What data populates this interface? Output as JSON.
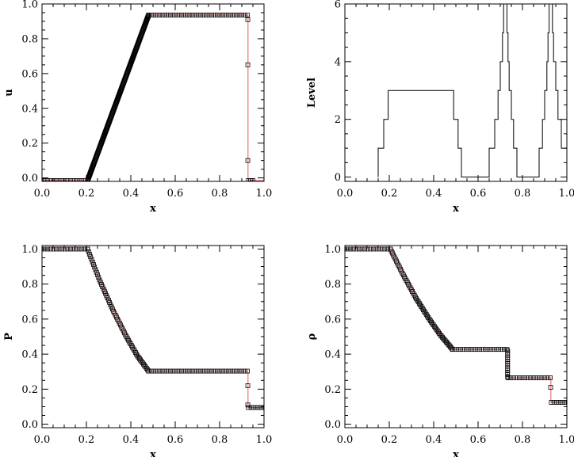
{
  "chart_data": [
    {
      "type": "scatter",
      "xlabel": "x",
      "ylabel": "u",
      "xlim": [
        0,
        1
      ],
      "ylim": [
        -0.02,
        1.0
      ],
      "xticks": [
        "0.0",
        "0.2",
        "0.4",
        "0.6",
        "0.8",
        "1.0"
      ],
      "yticks": [
        0,
        0.2,
        0.4,
        0.6,
        0.8,
        1.0
      ],
      "yticklabels": [
        "0.0",
        "0.2",
        "0.4",
        "0.6",
        "0.8",
        "1.0"
      ],
      "series": [
        {
          "style": "line",
          "color": "#e06060",
          "x": [
            0.0,
            0.205,
            0.48,
            0.928,
            0.928,
            1.0
          ],
          "y": [
            -0.015,
            -0.015,
            0.936,
            0.936,
            -0.015,
            -0.015
          ]
        },
        {
          "style": "markers",
          "color": "#000000",
          "segments": [
            {
              "x0": 0.0,
              "x1": 0.205,
              "y0": -0.015,
              "y1": -0.015,
              "step": 0.0125
            },
            {
              "x0": 0.205,
              "x1": 0.48,
              "y0": -0.015,
              "y1": 0.936,
              "step": 0.0045
            },
            {
              "x0": 0.48,
              "x1": 0.925,
              "y0": 0.936,
              "y1": 0.936,
              "step": 0.0125
            }
          ],
          "points": {
            "x": [
              0.927,
              0.927,
              0.927,
              0.93,
              0.94,
              0.95
            ],
            "y": [
              0.91,
              0.65,
              0.1,
              -0.015,
              -0.015,
              -0.015
            ]
          }
        }
      ]
    },
    {
      "type": "line",
      "xlabel": "x",
      "ylabel": "Level",
      "xlim": [
        0,
        1
      ],
      "ylim": [
        -0.15,
        6
      ],
      "xticks": [
        "0.0",
        "0.2",
        "0.4",
        "0.6",
        "0.8",
        "1.0"
      ],
      "yticks": [
        0,
        2,
        4,
        6
      ],
      "yticklabels": [
        "0",
        "2",
        "4",
        "6"
      ],
      "series": [
        {
          "style": "step",
          "color": "#000000",
          "x": [
            0.15,
            0.15,
            0.175,
            0.175,
            0.195,
            0.195,
            0.215,
            0.215,
            0.49,
            0.49,
            0.51,
            0.51,
            0.525,
            0.525,
            0.55,
            0.55,
            0.65,
            0.65,
            0.675,
            0.675,
            0.69,
            0.69,
            0.7,
            0.7,
            0.71,
            0.71,
            0.715,
            0.715,
            0.72,
            0.72,
            0.725,
            0.725,
            0.73,
            0.73,
            0.735,
            0.735,
            0.74,
            0.74,
            0.75,
            0.75,
            0.76,
            0.76,
            0.775,
            0.775,
            0.8,
            0.8,
            0.875,
            0.875,
            0.89,
            0.89,
            0.9,
            0.9,
            0.91,
            0.91,
            0.915,
            0.915,
            0.92,
            0.92,
            0.925,
            0.925,
            0.93,
            0.93,
            0.935,
            0.935,
            0.94,
            0.94,
            0.95,
            0.95,
            0.96,
            0.96,
            0.975,
            0.975,
            1.0
          ],
          "y": [
            0,
            1,
            1,
            2,
            2,
            3,
            3,
            3,
            3,
            2,
            2,
            1,
            1,
            0,
            0,
            0,
            0,
            1,
            1,
            2,
            2,
            3,
            3,
            4,
            4,
            5,
            5,
            6,
            6,
            6,
            6,
            6,
            6,
            5,
            5,
            4,
            4,
            3,
            3,
            2,
            2,
            1,
            1,
            0,
            0,
            0,
            0,
            1,
            1,
            2,
            2,
            3,
            3,
            4,
            4,
            5,
            5,
            6,
            6,
            6,
            6,
            6,
            6,
            5,
            5,
            4,
            4,
            3,
            3,
            2,
            2,
            1,
            1
          ]
        }
      ]
    },
    {
      "type": "scatter",
      "xlabel": "x",
      "ylabel": "P",
      "xlim": [
        0,
        1
      ],
      "ylim": [
        -0.02,
        1.02
      ],
      "xticks": [
        "0.0",
        "0.2",
        "0.4",
        "0.6",
        "0.8",
        "1.0"
      ],
      "yticks": [
        0,
        0.2,
        0.4,
        0.6,
        0.8,
        1.0
      ],
      "yticklabels": [
        "0.0",
        "0.2",
        "0.4",
        "0.6",
        "0.8",
        "1.0"
      ],
      "series": [
        {
          "style": "line",
          "color": "#e06060",
          "x": [
            0.0,
            0.205,
            0.26,
            0.32,
            0.38,
            0.43,
            0.48,
            0.928,
            0.928,
            1.0
          ],
          "y": [
            1.0,
            1.0,
            0.82,
            0.65,
            0.5,
            0.39,
            0.303,
            0.303,
            0.095,
            0.095
          ]
        },
        {
          "style": "markers",
          "color": "#000000",
          "segments": [
            {
              "x0": 0.0,
              "x1": 0.205,
              "y0": 1.0,
              "y1": 1.0,
              "step": 0.0125
            },
            {
              "x0": 0.48,
              "x1": 0.925,
              "y0": 0.303,
              "y1": 0.303,
              "step": 0.0125
            },
            {
              "x0": 0.93,
              "x1": 1.0,
              "y0": 0.095,
              "y1": 0.095,
              "step": 0.0125
            }
          ],
          "curve": {
            "x": [
              0.205,
              0.26,
              0.32,
              0.38,
              0.43,
              0.48
            ],
            "y": [
              1.0,
              0.82,
              0.65,
              0.5,
              0.39,
              0.303
            ],
            "step": 0.0045
          },
          "points": {
            "x": [
              0.927,
              0.927
            ],
            "y": [
              0.22,
              0.11
            ]
          }
        }
      ]
    },
    {
      "type": "scatter",
      "xlabel": "x",
      "ylabel": "ρ",
      "xlim": [
        0,
        1
      ],
      "ylim": [
        -0.02,
        1.02
      ],
      "xticks": [
        "0.0",
        "0.2",
        "0.4",
        "0.6",
        "0.8",
        "1.0"
      ],
      "yticks": [
        0,
        0.2,
        0.4,
        0.6,
        0.8,
        1.0
      ],
      "yticklabels": [
        "0.0",
        "0.2",
        "0.4",
        "0.6",
        "0.8",
        "1.0"
      ],
      "series": [
        {
          "style": "line",
          "color": "#e06060",
          "x": [
            0.0,
            0.205,
            0.26,
            0.32,
            0.38,
            0.43,
            0.485,
            0.733,
            0.733,
            0.928,
            0.928,
            1.0
          ],
          "y": [
            1.0,
            1.0,
            0.86,
            0.72,
            0.6,
            0.51,
            0.427,
            0.427,
            0.265,
            0.265,
            0.125,
            0.125
          ]
        },
        {
          "style": "markers",
          "color": "#000000",
          "segments": [
            {
              "x0": 0.0,
              "x1": 0.205,
              "y0": 1.0,
              "y1": 1.0,
              "step": 0.0125
            },
            {
              "x0": 0.485,
              "x1": 0.73,
              "y0": 0.427,
              "y1": 0.427,
              "step": 0.0125
            },
            {
              "x0": 0.733,
              "x1": 0.733,
              "y0": 0.42,
              "y1": 0.27,
              "step": 0.012
            },
            {
              "x0": 0.735,
              "x1": 0.925,
              "y0": 0.265,
              "y1": 0.265,
              "step": 0.0125
            },
            {
              "x0": 0.93,
              "x1": 1.0,
              "y0": 0.125,
              "y1": 0.125,
              "step": 0.0125
            }
          ],
          "curve": {
            "x": [
              0.205,
              0.26,
              0.32,
              0.38,
              0.43,
              0.485
            ],
            "y": [
              1.0,
              0.86,
              0.72,
              0.6,
              0.51,
              0.427
            ],
            "step": 0.0045
          },
          "points": {
            "x": [
              0.927
            ],
            "y": [
              0.21
            ]
          }
        }
      ]
    }
  ]
}
